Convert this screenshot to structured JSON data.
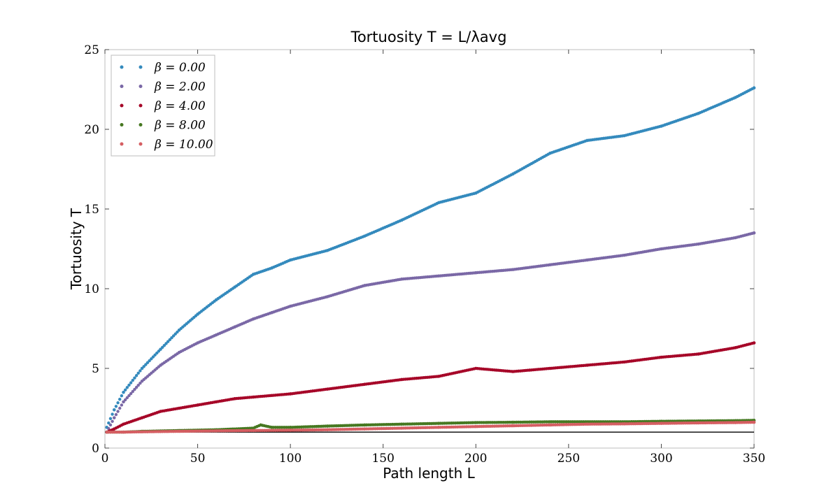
{
  "chart_data": {
    "type": "scatter",
    "title": "Tortuosity T = L/λavg",
    "xlabel": "Path length L",
    "ylabel": "Tortuosity T",
    "xlim": [
      0,
      350
    ],
    "ylim": [
      0,
      25
    ],
    "xticks": [
      0,
      50,
      100,
      150,
      200,
      250,
      300,
      350
    ],
    "yticks": [
      0,
      5,
      10,
      15,
      20,
      25
    ],
    "grid": false,
    "legend_position": "top-left",
    "reference_line": {
      "y": 1,
      "color": "#000000"
    },
    "series": [
      {
        "name": "β = 0.00",
        "color": "#348ABD",
        "x": [
          1,
          5,
          10,
          20,
          30,
          40,
          50,
          60,
          70,
          80,
          90,
          100,
          120,
          140,
          160,
          180,
          200,
          220,
          240,
          260,
          280,
          300,
          320,
          340,
          350
        ],
        "y": [
          1.3,
          2.4,
          3.5,
          5.0,
          6.2,
          7.4,
          8.4,
          9.3,
          10.1,
          10.9,
          11.3,
          11.8,
          12.4,
          13.3,
          14.3,
          15.4,
          16.0,
          17.2,
          18.5,
          19.3,
          19.6,
          20.2,
          21.0,
          22.0,
          22.6
        ]
      },
      {
        "name": "β = 2.00",
        "color": "#7A68A6",
        "x": [
          1,
          5,
          10,
          20,
          30,
          40,
          50,
          60,
          70,
          80,
          90,
          100,
          120,
          140,
          160,
          180,
          200,
          220,
          240,
          260,
          280,
          300,
          320,
          340,
          350
        ],
        "y": [
          1.0,
          1.9,
          2.9,
          4.2,
          5.2,
          6.0,
          6.6,
          7.1,
          7.6,
          8.1,
          8.5,
          8.9,
          9.5,
          10.2,
          10.6,
          10.8,
          11.0,
          11.2,
          11.5,
          11.8,
          12.1,
          12.5,
          12.8,
          13.2,
          13.5
        ]
      },
      {
        "name": "β = 4.00",
        "color": "#A60628",
        "x": [
          1,
          5,
          10,
          20,
          30,
          40,
          50,
          60,
          70,
          80,
          90,
          100,
          120,
          140,
          160,
          180,
          200,
          220,
          240,
          260,
          280,
          300,
          320,
          340,
          350
        ],
        "y": [
          1.0,
          1.2,
          1.5,
          1.9,
          2.3,
          2.5,
          2.7,
          2.9,
          3.1,
          3.2,
          3.3,
          3.4,
          3.7,
          4.0,
          4.3,
          4.5,
          5.0,
          4.8,
          5.0,
          5.2,
          5.4,
          5.7,
          5.9,
          6.3,
          6.6
        ]
      },
      {
        "name": "β = 8.00",
        "color": "#467821",
        "x": [
          1,
          10,
          20,
          40,
          60,
          80,
          84,
          90,
          100,
          120,
          140,
          160,
          180,
          200,
          220,
          240,
          260,
          280,
          300,
          320,
          340,
          350
        ],
        "y": [
          1.0,
          1.0,
          1.05,
          1.1,
          1.15,
          1.25,
          1.45,
          1.3,
          1.3,
          1.38,
          1.45,
          1.5,
          1.55,
          1.6,
          1.62,
          1.65,
          1.65,
          1.65,
          1.68,
          1.7,
          1.72,
          1.74
        ]
      },
      {
        "name": "β = 10.00",
        "color": "#D55E62",
        "x": [
          1,
          10,
          20,
          40,
          60,
          80,
          100,
          120,
          140,
          160,
          180,
          200,
          220,
          240,
          260,
          280,
          300,
          320,
          340,
          350
        ],
        "y": [
          1.0,
          1.0,
          1.02,
          1.05,
          1.08,
          1.1,
          1.12,
          1.15,
          1.2,
          1.25,
          1.3,
          1.35,
          1.4,
          1.45,
          1.5,
          1.52,
          1.55,
          1.58,
          1.6,
          1.62
        ]
      }
    ]
  }
}
